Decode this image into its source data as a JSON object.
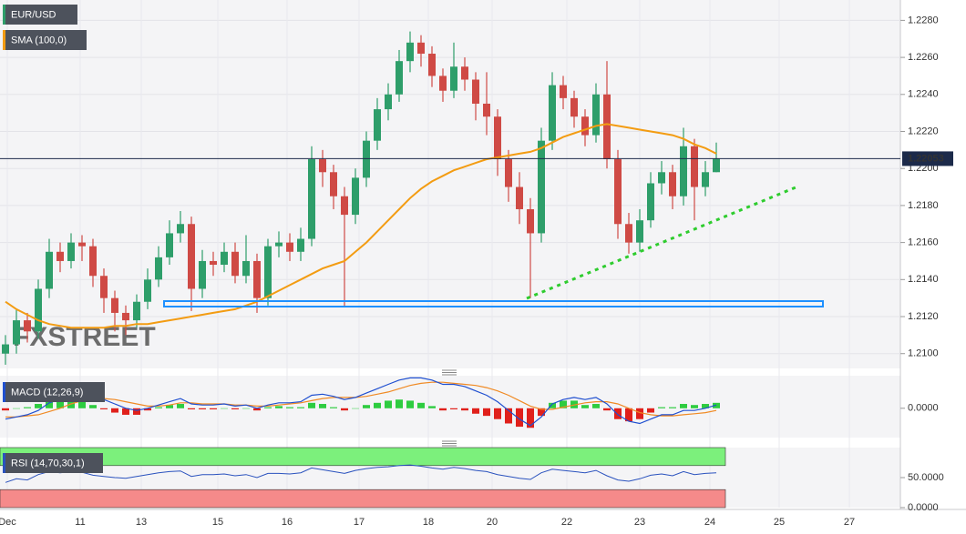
{
  "chart_data": [
    {
      "type": "candlestick",
      "title": "EUR/USD",
      "watermark": "FXSTREET",
      "up_color": "#2e9e6a",
      "down_color": "#cf4a45",
      "open": [
        1.21,
        1.2105,
        1.2118,
        1.2112,
        1.2135,
        1.2155,
        1.215,
        1.216,
        1.2158,
        1.2142,
        1.213,
        1.2122,
        1.2118,
        1.2128,
        1.214,
        1.2152,
        1.2165,
        1.217,
        1.2135,
        1.215,
        1.2148,
        1.2155,
        1.2142,
        1.215,
        1.213,
        1.2158,
        1.216,
        1.2155,
        1.2162,
        1.2205,
        1.2198,
        1.2185,
        1.2175,
        1.2195,
        1.2215,
        1.2232,
        1.224,
        1.2258,
        1.2268,
        1.2262,
        1.225,
        1.2242,
        1.2255,
        1.2248,
        1.2235,
        1.2228,
        1.2205,
        1.219,
        1.2178,
        1.2165,
        1.2215,
        1.2245,
        1.2238,
        1.2228,
        1.2218,
        1.224,
        1.2205,
        1.217,
        1.216,
        1.2172,
        1.2192,
        1.2198,
        1.2185,
        1.2212,
        1.219,
        1.2198
      ],
      "high": [
        1.211,
        1.2124,
        1.2122,
        1.214,
        1.2162,
        1.216,
        1.2165,
        1.2164,
        1.2162,
        1.2146,
        1.2134,
        1.2126,
        1.2132,
        1.2146,
        1.2158,
        1.2172,
        1.2177,
        1.2174,
        1.2156,
        1.2155,
        1.216,
        1.216,
        1.2164,
        1.2154,
        1.2162,
        1.2166,
        1.2165,
        1.2168,
        1.2212,
        1.221,
        1.2202,
        1.219,
        1.22,
        1.222,
        1.2238,
        1.2246,
        1.2264,
        1.2274,
        1.2272,
        1.2266,
        1.2254,
        1.2268,
        1.226,
        1.2252,
        1.2252,
        1.2232,
        1.221,
        1.2198,
        1.2184,
        1.2222,
        1.2252,
        1.225,
        1.2242,
        1.2232,
        1.2246,
        1.2258,
        1.221,
        1.2176,
        1.2178,
        1.2198,
        1.2204,
        1.2202,
        1.2222,
        1.2216,
        1.2204,
        1.2214
      ],
      "low": [
        1.2094,
        1.21,
        1.2106,
        1.2108,
        1.213,
        1.2144,
        1.2146,
        1.215,
        1.2136,
        1.2122,
        1.2112,
        1.211,
        1.2114,
        1.2124,
        1.2136,
        1.2148,
        1.216,
        1.2123,
        1.213,
        1.2142,
        1.2144,
        1.2138,
        1.2138,
        1.2122,
        1.2126,
        1.2152,
        1.215,
        1.215,
        1.2158,
        1.219,
        1.2178,
        1.2125,
        1.217,
        1.219,
        1.221,
        1.2226,
        1.2236,
        1.2252,
        1.2255,
        1.2244,
        1.2236,
        1.2238,
        1.2242,
        1.2226,
        1.2218,
        1.2196,
        1.2182,
        1.217,
        1.213,
        1.216,
        1.221,
        1.2232,
        1.2222,
        1.2212,
        1.2214,
        1.22,
        1.2162,
        1.2154,
        1.2155,
        1.2168,
        1.2186,
        1.2178,
        1.218,
        1.2172,
        1.2185,
        1.2198
      ],
      "close": [
        1.2105,
        1.2118,
        1.2112,
        1.2135,
        1.2155,
        1.215,
        1.216,
        1.2158,
        1.2142,
        1.213,
        1.2122,
        1.2118,
        1.2128,
        1.214,
        1.2152,
        1.2165,
        1.217,
        1.2135,
        1.215,
        1.2148,
        1.2155,
        1.2142,
        1.215,
        1.213,
        1.2158,
        1.216,
        1.2155,
        1.2162,
        1.2205,
        1.2198,
        1.2185,
        1.2175,
        1.2195,
        1.2215,
        1.2232,
        1.224,
        1.2258,
        1.2268,
        1.2262,
        1.225,
        1.2242,
        1.2255,
        1.2248,
        1.2235,
        1.2228,
        1.2205,
        1.219,
        1.2178,
        1.2165,
        1.2215,
        1.2245,
        1.2238,
        1.2228,
        1.2218,
        1.224,
        1.2205,
        1.217,
        1.216,
        1.2172,
        1.2192,
        1.2198,
        1.2185,
        1.2212,
        1.219,
        1.2198,
        1.22053
      ],
      "overlay": {
        "name": "SMA (100,0)",
        "color": "#f39c12",
        "values": [
          1.2128,
          1.2124,
          1.2121,
          1.2118,
          1.2116,
          1.2115,
          1.2114,
          1.2114,
          1.2114,
          1.2114,
          1.2115,
          1.2115,
          1.2116,
          1.2116,
          1.2117,
          1.2118,
          1.2119,
          1.212,
          1.2121,
          1.2122,
          1.2123,
          1.2124,
          1.2126,
          1.2128,
          1.2131,
          1.2134,
          1.2137,
          1.214,
          1.2143,
          1.2146,
          1.2148,
          1.215,
          1.2155,
          1.216,
          1.2166,
          1.2172,
          1.2178,
          1.2184,
          1.2189,
          1.2193,
          1.2196,
          1.2199,
          1.2201,
          1.2203,
          1.2205,
          1.2206,
          1.2207,
          1.2208,
          1.2209,
          1.2211,
          1.2214,
          1.2217,
          1.2219,
          1.2221,
          1.2223,
          1.2224,
          1.2223,
          1.2222,
          1.2221,
          1.222,
          1.2219,
          1.2218,
          1.2216,
          1.2213,
          1.2211,
          1.2208
        ]
      },
      "current_price": 1.22053,
      "ylim": [
        1.2092,
        1.2291
      ],
      "yticks": [
        {
          "value": 1.21,
          "label": "1.2100"
        },
        {
          "value": 1.212,
          "label": "1.2120"
        },
        {
          "value": 1.214,
          "label": "1.2140"
        },
        {
          "value": 1.216,
          "label": "1.2160"
        },
        {
          "value": 1.218,
          "label": "1.2180"
        },
        {
          "value": 1.22,
          "label": "1.2200"
        },
        {
          "value": 1.222,
          "label": "1.2220"
        },
        {
          "value": 1.224,
          "label": "1.2240"
        },
        {
          "value": 1.226,
          "label": "1.2260"
        },
        {
          "value": 1.228,
          "label": "1.2280"
        }
      ],
      "grid": true,
      "x_labels": [
        "Dec",
        "11",
        "13",
        "15",
        "16",
        "17",
        "18",
        "20",
        "22",
        "23",
        "24",
        "25",
        "27"
      ]
    },
    {
      "type": "macd",
      "title": "MACD (12,26,9)",
      "macd_color": "#1f4fd0",
      "signal_color": "#f08a24",
      "up_color": "#2ecc40",
      "down_color": "#e0201b",
      "macd": [
        -0.001,
        -0.0008,
        -0.0006,
        -0.0002,
        0.0005,
        0.0008,
        0.0012,
        0.0014,
        0.0012,
        0.0008,
        0.0004,
        0,
        -0.0002,
        0,
        0.0003,
        0.0006,
        0.0009,
        0.0004,
        0.0003,
        0.0003,
        0.0004,
        0.0002,
        0.0003,
        0,
        0.0003,
        0.0005,
        0.0005,
        0.0006,
        0.0012,
        0.0013,
        0.0011,
        0.0008,
        0.001,
        0.0014,
        0.0018,
        0.0022,
        0.0026,
        0.0028,
        0.0028,
        0.0026,
        0.0022,
        0.0022,
        0.002,
        0.0016,
        0.0012,
        0.0006,
        -0.0002,
        -0.001,
        -0.0016,
        -0.0008,
        0.0004,
        0.0008,
        0.001,
        0.0008,
        0.001,
        0.0004,
        -0.0006,
        -0.0012,
        -0.0014,
        -0.001,
        -0.0006,
        -0.0006,
        -0.0002,
        -0.0002,
        0,
        0.0003
      ],
      "signal": [
        -0.0008,
        -0.0008,
        -0.0007,
        -0.0006,
        -0.0003,
        0,
        0.0004,
        0.0007,
        0.0009,
        0.0009,
        0.0008,
        0.0006,
        0.0004,
        0.0002,
        0.0002,
        0.0003,
        0.0005,
        0.0005,
        0.0004,
        0.0004,
        0.0004,
        0.0003,
        0.0003,
        0.0002,
        0.0002,
        0.0003,
        0.0004,
        0.0005,
        0.0007,
        0.0009,
        0.001,
        0.001,
        0.001,
        0.0011,
        0.0013,
        0.0015,
        0.0018,
        0.0021,
        0.0023,
        0.0024,
        0.0024,
        0.0023,
        0.0022,
        0.0021,
        0.0019,
        0.0016,
        0.0012,
        0.0007,
        0.0002,
        -0.0001,
        -0.0001,
        0.0001,
        0.0003,
        0.0005,
        0.0006,
        0.0006,
        0.0004,
        0,
        -0.0004,
        -0.0006,
        -0.0007,
        -0.0007,
        -0.0006,
        -0.0005,
        -0.0004,
        -0.0002
      ],
      "histogram": [
        -0.0002,
        0,
        0.0001,
        0.0004,
        0.0008,
        0.0008,
        0.0008,
        0.0007,
        0.0003,
        -0.0001,
        -0.0004,
        -0.0006,
        -0.0006,
        -0.0002,
        0.0001,
        0.0003,
        0.0004,
        -0.0001,
        -0.0001,
        -0.0001,
        0,
        -0.0001,
        0,
        -0.0002,
        0.0001,
        0.0002,
        0.0001,
        0.0001,
        0.0005,
        0.0004,
        0.0001,
        -0.0002,
        0,
        0.0003,
        0.0005,
        0.0007,
        0.0008,
        0.0007,
        0.0005,
        0.0002,
        -0.0002,
        -0.0001,
        -0.0002,
        -0.0005,
        -0.0007,
        -0.001,
        -0.0014,
        -0.0017,
        -0.0018,
        -0.0007,
        0.0005,
        0.0007,
        0.0007,
        0.0003,
        0.0004,
        -0.0002,
        -0.001,
        -0.0012,
        -0.001,
        -0.0004,
        0.0001,
        0.0001,
        0.0004,
        0.0003,
        0.0004,
        0.0005
      ],
      "ylim": [
        -0.0027,
        0.003
      ],
      "yticks": [
        {
          "value": 0,
          "label": "0.0000"
        }
      ]
    },
    {
      "type": "rsi",
      "title": "RSI (14,70,30,1)",
      "color": "#2a52be",
      "overbought": 70,
      "oversold": 30,
      "overbought_color": "#7cf07c",
      "oversold_color": "#f58a8a",
      "values": [
        42,
        48,
        46,
        55,
        60,
        58,
        60,
        59,
        54,
        52,
        50,
        49,
        52,
        55,
        58,
        60,
        61,
        52,
        55,
        55,
        56,
        53,
        55,
        50,
        57,
        57,
        56,
        58,
        66,
        63,
        60,
        57,
        62,
        65,
        67,
        68,
        70,
        71,
        69,
        66,
        64,
        67,
        65,
        62,
        60,
        55,
        52,
        49,
        47,
        58,
        64,
        62,
        60,
        58,
        62,
        53,
        46,
        44,
        48,
        54,
        56,
        53,
        60,
        55,
        57,
        58
      ],
      "ylim": [
        0,
        100
      ],
      "yticks": [
        {
          "value": 50,
          "label": "50.0000"
        },
        {
          "value": 0,
          "label": "0.0000"
        }
      ]
    }
  ]
}
